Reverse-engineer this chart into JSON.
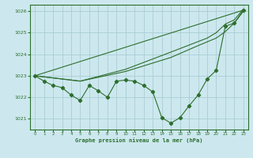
{
  "title": "Graphe pression niveau de la mer (hPa)",
  "bg_color": "#cce8ee",
  "grid_color": "#aaccd4",
  "line_color": "#2d6e2d",
  "xlim": [
    -0.5,
    23.5
  ],
  "ylim": [
    1020.5,
    1026.3
  ],
  "yticks": [
    1021,
    1022,
    1023,
    1024,
    1025,
    1026
  ],
  "xticks": [
    0,
    1,
    2,
    3,
    4,
    5,
    6,
    7,
    8,
    9,
    10,
    11,
    12,
    13,
    14,
    15,
    16,
    17,
    18,
    19,
    20,
    21,
    22,
    23
  ],
  "series_wavy": [
    [
      0,
      1023.0
    ],
    [
      1,
      1022.75
    ],
    [
      2,
      1022.55
    ],
    [
      3,
      1022.45
    ],
    [
      4,
      1022.1
    ],
    [
      5,
      1021.85
    ],
    [
      6,
      1022.55
    ],
    [
      7,
      1022.3
    ],
    [
      8,
      1022.0
    ],
    [
      9,
      1022.75
    ],
    [
      10,
      1022.8
    ],
    [
      11,
      1022.75
    ],
    [
      12,
      1022.55
    ],
    [
      13,
      1022.25
    ],
    [
      14,
      1021.05
    ],
    [
      15,
      1020.8
    ],
    [
      16,
      1021.05
    ],
    [
      17,
      1021.6
    ],
    [
      18,
      1022.1
    ],
    [
      19,
      1022.85
    ],
    [
      20,
      1023.25
    ],
    [
      21,
      1025.3
    ],
    [
      22,
      1025.45
    ],
    [
      23,
      1026.05
    ]
  ],
  "series_smooth1": [
    [
      0,
      1023.0
    ],
    [
      23,
      1026.05
    ]
  ],
  "series_smooth2": [
    [
      0,
      1023.0
    ],
    [
      5,
      1022.75
    ],
    [
      10,
      1023.2
    ],
    [
      15,
      1023.85
    ],
    [
      18,
      1024.4
    ],
    [
      20,
      1024.75
    ],
    [
      21,
      1025.05
    ],
    [
      22,
      1025.45
    ],
    [
      23,
      1026.0
    ]
  ],
  "series_smooth3": [
    [
      0,
      1023.0
    ],
    [
      5,
      1022.75
    ],
    [
      10,
      1023.3
    ],
    [
      15,
      1024.1
    ],
    [
      19,
      1024.75
    ],
    [
      20,
      1025.0
    ],
    [
      21,
      1025.4
    ],
    [
      22,
      1025.6
    ],
    [
      23,
      1026.1
    ]
  ]
}
